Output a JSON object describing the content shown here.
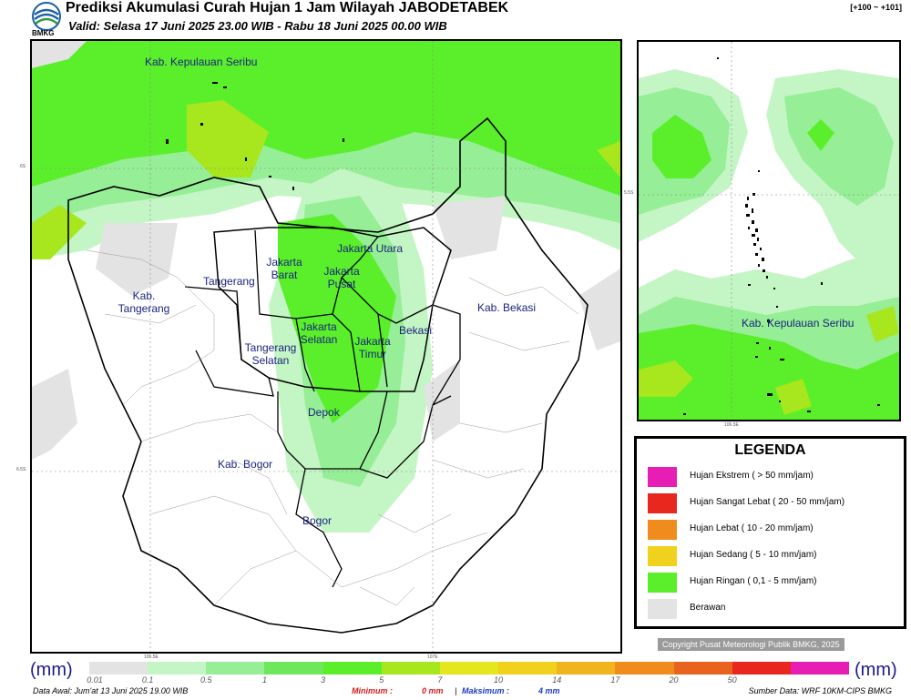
{
  "header": {
    "title": "Prediksi Akumulasi Curah Hujan 1 Jam Wilayah JABODETABEK",
    "valid": "Valid: Selasa 17 Juni 2025 23.00 WIB - Rabu 18 Juni 2025 00.00 WIB",
    "run": "[+100 ~ +101]",
    "logo_text": "BMKG"
  },
  "main_map": {
    "regions": [
      "Kab. Kepulauan Seribu",
      "Jakarta Utara",
      "Jakarta Barat",
      "Jakarta Pusat",
      "Tangerang",
      "Kab. Tangerang",
      "Jakarta Selatan",
      "Jakarta Timur",
      "Bekasi",
      "Kab. Bekasi",
      "Tangerang Selatan",
      "Depok",
      "Kab. Bogor",
      "Bogor"
    ],
    "lat_ticks": [
      "6S",
      "6.5S"
    ],
    "lon_ticks": [
      "106.5E",
      "107E"
    ]
  },
  "inset_map": {
    "region": "Kab. Kepulauan Seribu",
    "lat_tick": "5.5S",
    "lon_tick": "106.5E"
  },
  "legend": {
    "title": "LEGENDA",
    "items": [
      {
        "label": "Hujan Ekstrem ( > 50 mm/jam)",
        "color": "#e61eb4"
      },
      {
        "label": "Hujan Sangat Lebat ( 20 - 50 mm/jam)",
        "color": "#e8281e"
      },
      {
        "label": "Hujan Lebat ( 10 - 20 mm/jam)",
        "color": "#f08c1e"
      },
      {
        "label": "Hujan Sedang ( 5 - 10 mm/jam)",
        "color": "#f0d21e"
      },
      {
        "label": "Hujan Ringan ( 0,1 - 5 mm/jam)",
        "color": "#5aef2a"
      },
      {
        "label": "Berawan",
        "color": "#e3e3e3"
      }
    ]
  },
  "copyright": "Copyright Pusat Meteorologi Publik BMKG, 2025",
  "scale": {
    "unit_left": "(mm)",
    "unit_right": "(mm)",
    "ticks": [
      "0.01",
      "0.1",
      "0.5",
      "1",
      "3",
      "5",
      "7",
      "10",
      "14",
      "17",
      "20",
      "50"
    ],
    "colors": [
      "#e3e3e3",
      "#c4f5c4",
      "#96ee96",
      "#6ee85a",
      "#5aef2a",
      "#a8e61e",
      "#e6e61e",
      "#f0d21e",
      "#f0b41e",
      "#f08c1e",
      "#e8641e",
      "#e8281e",
      "#e61eb4"
    ]
  },
  "footer": {
    "data_awal": "Data Awal: Jum'at 13 Juni 2025 19.00 WIB",
    "min_label": "Minimum :",
    "min_value": "0 mm",
    "sep": "|",
    "max_label": "Maksimum :",
    "max_value": "4 mm",
    "source": "Sumber Data: WRF 10KM-CIPS BMKG"
  }
}
